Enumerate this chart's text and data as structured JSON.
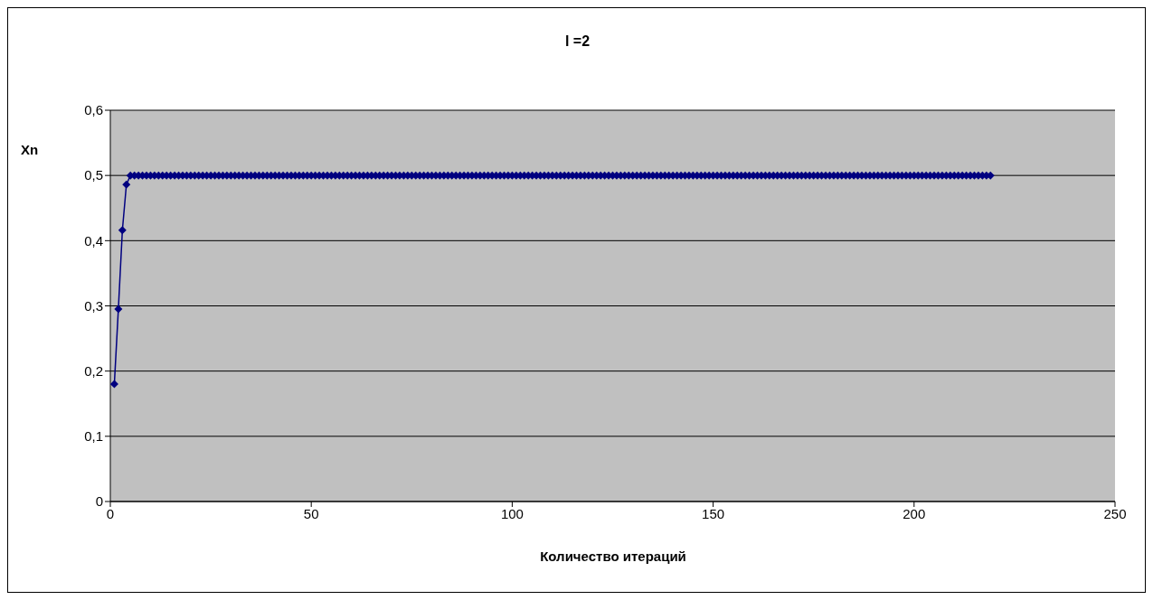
{
  "chart_data": {
    "type": "line",
    "title": "l =2",
    "xlabel": "Количество итераций",
    "ylabel": "Xn",
    "xlim": [
      0,
      250
    ],
    "xticks": [
      0,
      50,
      100,
      150,
      200,
      250
    ],
    "ylim": [
      0,
      0.6
    ],
    "yticks": [
      {
        "value": 0,
        "label": "0"
      },
      {
        "value": 0.1,
        "label": "0,1"
      },
      {
        "value": 0.2,
        "label": "0,2"
      },
      {
        "value": 0.3,
        "label": "0,3"
      },
      {
        "value": 0.4,
        "label": "0,4"
      },
      {
        "value": 0.5,
        "label": "0,5"
      },
      {
        "value": 0.6,
        "label": "0,6"
      }
    ],
    "grid": "y",
    "marker": "diamond",
    "line_style": "solid",
    "series": [
      {
        "color": "#000080",
        "x": [
          1,
          2,
          3,
          4,
          5,
          6,
          7,
          8,
          9,
          10,
          11,
          12,
          13,
          14,
          15,
          16,
          17,
          18,
          19,
          20,
          21,
          22,
          23,
          24,
          25,
          26,
          27,
          28,
          29,
          30,
          31,
          32,
          33,
          34,
          35,
          36,
          37,
          38,
          39,
          40,
          41,
          42,
          43,
          44,
          45,
          46,
          47,
          48,
          49,
          50,
          51,
          52,
          53,
          54,
          55,
          56,
          57,
          58,
          59,
          60,
          61,
          62,
          63,
          64,
          65,
          66,
          67,
          68,
          69,
          70,
          71,
          72,
          73,
          74,
          75,
          76,
          77,
          78,
          79,
          80,
          81,
          82,
          83,
          84,
          85,
          86,
          87,
          88,
          89,
          90,
          91,
          92,
          93,
          94,
          95,
          96,
          97,
          98,
          99,
          100,
          101,
          102,
          103,
          104,
          105,
          106,
          107,
          108,
          109,
          110,
          111,
          112,
          113,
          114,
          115,
          116,
          117,
          118,
          119,
          120,
          121,
          122,
          123,
          124,
          125,
          126,
          127,
          128,
          129,
          130,
          131,
          132,
          133,
          134,
          135,
          136,
          137,
          138,
          139,
          140,
          141,
          142,
          143,
          144,
          145,
          146,
          147,
          148,
          149,
          150,
          151,
          152,
          153,
          154,
          155,
          156,
          157,
          158,
          159,
          160,
          161,
          162,
          163,
          164,
          165,
          166,
          167,
          168,
          169,
          170,
          171,
          172,
          173,
          174,
          175,
          176,
          177,
          178,
          179,
          180,
          181,
          182,
          183,
          184,
          185,
          186,
          187,
          188,
          189,
          190,
          191,
          192,
          193,
          194,
          195,
          196,
          197,
          198,
          199,
          200,
          201,
          202,
          203,
          204,
          205,
          206,
          207,
          208,
          209,
          210,
          211,
          212,
          213,
          214,
          215,
          216,
          217,
          218,
          219
        ],
        "values": [
          0.18,
          0.295,
          0.416,
          0.486,
          0.5,
          0.5,
          0.5,
          0.5,
          0.5,
          0.5,
          0.5,
          0.5,
          0.5,
          0.5,
          0.5,
          0.5,
          0.5,
          0.5,
          0.5,
          0.5,
          0.5,
          0.5,
          0.5,
          0.5,
          0.5,
          0.5,
          0.5,
          0.5,
          0.5,
          0.5,
          0.5,
          0.5,
          0.5,
          0.5,
          0.5,
          0.5,
          0.5,
          0.5,
          0.5,
          0.5,
          0.5,
          0.5,
          0.5,
          0.5,
          0.5,
          0.5,
          0.5,
          0.5,
          0.5,
          0.5,
          0.5,
          0.5,
          0.5,
          0.5,
          0.5,
          0.5,
          0.5,
          0.5,
          0.5,
          0.5,
          0.5,
          0.5,
          0.5,
          0.5,
          0.5,
          0.5,
          0.5,
          0.5,
          0.5,
          0.5,
          0.5,
          0.5,
          0.5,
          0.5,
          0.5,
          0.5,
          0.5,
          0.5,
          0.5,
          0.5,
          0.5,
          0.5,
          0.5,
          0.5,
          0.5,
          0.5,
          0.5,
          0.5,
          0.5,
          0.5,
          0.5,
          0.5,
          0.5,
          0.5,
          0.5,
          0.5,
          0.5,
          0.5,
          0.5,
          0.5,
          0.5,
          0.5,
          0.5,
          0.5,
          0.5,
          0.5,
          0.5,
          0.5,
          0.5,
          0.5,
          0.5,
          0.5,
          0.5,
          0.5,
          0.5,
          0.5,
          0.5,
          0.5,
          0.5,
          0.5,
          0.5,
          0.5,
          0.5,
          0.5,
          0.5,
          0.5,
          0.5,
          0.5,
          0.5,
          0.5,
          0.5,
          0.5,
          0.5,
          0.5,
          0.5,
          0.5,
          0.5,
          0.5,
          0.5,
          0.5,
          0.5,
          0.5,
          0.5,
          0.5,
          0.5,
          0.5,
          0.5,
          0.5,
          0.5,
          0.5,
          0.5,
          0.5,
          0.5,
          0.5,
          0.5,
          0.5,
          0.5,
          0.5,
          0.5,
          0.5,
          0.5,
          0.5,
          0.5,
          0.5,
          0.5,
          0.5,
          0.5,
          0.5,
          0.5,
          0.5,
          0.5,
          0.5,
          0.5,
          0.5,
          0.5,
          0.5,
          0.5,
          0.5,
          0.5,
          0.5,
          0.5,
          0.5,
          0.5,
          0.5,
          0.5,
          0.5,
          0.5,
          0.5,
          0.5,
          0.5,
          0.5,
          0.5,
          0.5,
          0.5,
          0.5,
          0.5,
          0.5,
          0.5,
          0.5,
          0.5,
          0.5,
          0.5,
          0.5,
          0.5,
          0.5,
          0.5,
          0.5,
          0.5,
          0.5,
          0.5,
          0.5,
          0.5,
          0.5,
          0.5,
          0.5,
          0.5,
          0.5,
          0.5,
          0.5
        ]
      }
    ]
  }
}
